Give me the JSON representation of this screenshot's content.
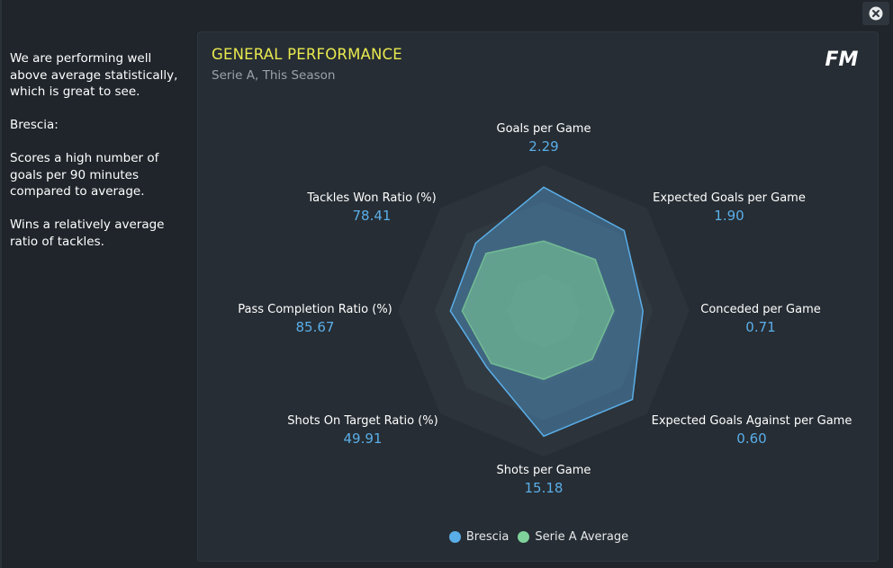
{
  "sidebar": {
    "summary": "We are performing well above average statistically, which is great to see.",
    "team_heading": "Brescia:",
    "point_1": "Scores a high number of goals per 90 minutes compared to average.",
    "point_2": "Wins a relatively average ratio of tackles."
  },
  "panel": {
    "title": "GENERAL PERFORMANCE",
    "subtitle": "Serie A, This Season",
    "logo_text": "FM"
  },
  "colors": {
    "team": "#5aaee8",
    "average": "#7fd29a",
    "title": "#e9e94f"
  },
  "chart_data": {
    "type": "radar",
    "axes": [
      {
        "label": "Goals per Game",
        "value": "2.29",
        "team": 0.85,
        "average": 0.48
      },
      {
        "label": "Expected Goals per Game",
        "value": "1.90",
        "team": 0.78,
        "average": 0.5
      },
      {
        "label": "Conceded per Game",
        "value": "0.71",
        "team": 0.68,
        "average": 0.48
      },
      {
        "label": "Expected Goals Against per Game",
        "value": "0.60",
        "team": 0.86,
        "average": 0.47
      },
      {
        "label": "Shots per Game",
        "value": "15.18",
        "team": 0.86,
        "average": 0.47
      },
      {
        "label": "Shots On Target Ratio (%)",
        "value": "49.91",
        "team": 0.55,
        "average": 0.51
      },
      {
        "label": "Pass Completion Ratio (%)",
        "value": "85.67",
        "team": 0.64,
        "average": 0.56
      },
      {
        "label": "Tackles Won Ratio (%)",
        "value": "78.41",
        "team": 0.66,
        "average": 0.56
      }
    ],
    "series": [
      {
        "name": "Brescia",
        "key": "team"
      },
      {
        "name": "Serie A Average",
        "key": "average"
      }
    ],
    "grid_levels": 4,
    "legend": "bottom-center"
  }
}
